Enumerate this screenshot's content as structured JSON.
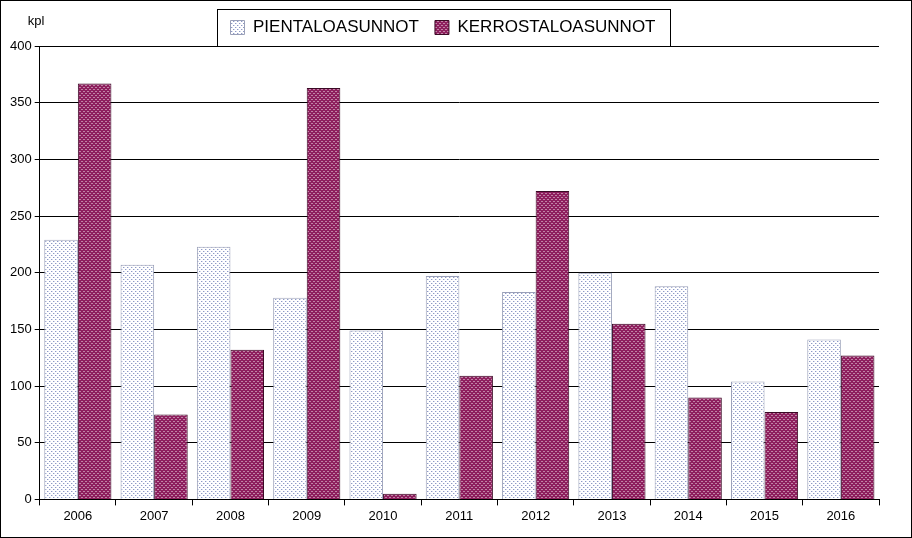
{
  "chart_data": {
    "type": "bar",
    "y_label": "kpl",
    "categories": [
      "2006",
      "2007",
      "2008",
      "2009",
      "2010",
      "2011",
      "2012",
      "2013",
      "2014",
      "2015",
      "2016"
    ],
    "series": [
      {
        "name": "PIENTALOASUNNOT",
        "color": "#d4d9ee",
        "values": [
          229,
          207,
          223,
          178,
          149,
          197,
          183,
          200,
          188,
          104,
          141
        ]
      },
      {
        "name": "KERROSTALOASUNNOT",
        "color": "#8e1f5e",
        "values": [
          367,
          75,
          132,
          363,
          5,
          109,
          272,
          155,
          90,
          77,
          127
        ]
      }
    ],
    "ylim": [
      0,
      400
    ],
    "yticks": [
      0,
      50,
      100,
      150,
      200,
      250,
      300,
      350,
      400
    ],
    "grid": true,
    "legend": "top"
  }
}
